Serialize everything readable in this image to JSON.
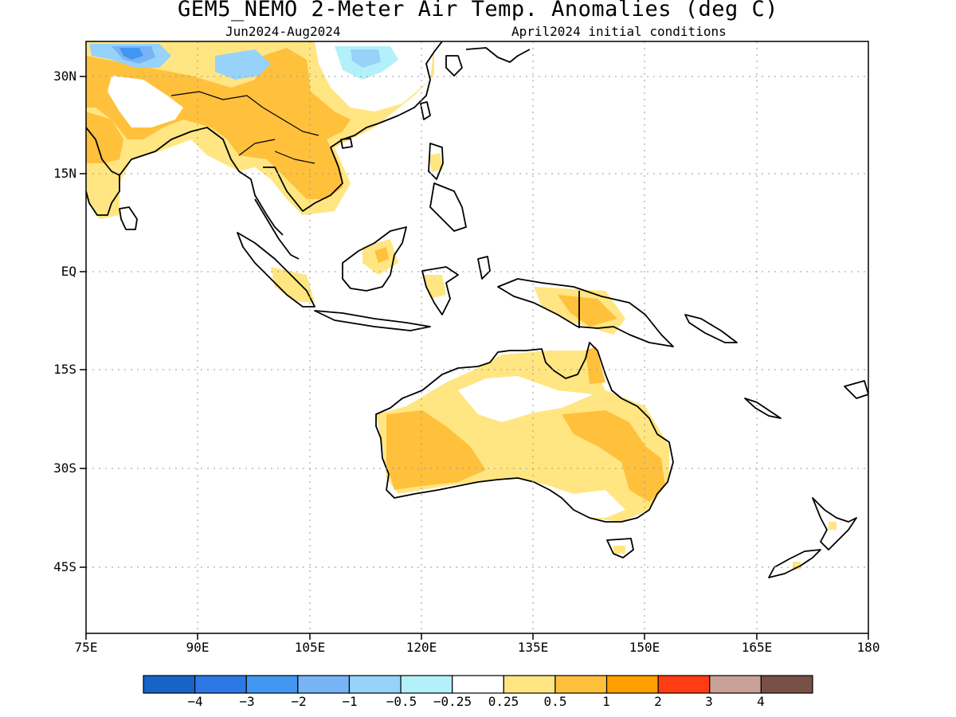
{
  "title": "GEM5_NEMO 2-Meter Air Temp. Anomalies (deg C)",
  "subtitle_left": "Jun2024-Aug2024",
  "subtitle_right": "April2024 initial conditions",
  "chart_data": {
    "type": "heatmap",
    "variable": "2-Meter Air Temp. Anomalies",
    "units": "deg C",
    "forecast_period": "Jun2024-Aug2024",
    "initial_conditions": "April2024 initial conditions",
    "lon_range": [
      75,
      180
    ],
    "lat_range": [
      -55,
      35
    ],
    "lat_ticks": [
      {
        "value": 30,
        "label": "30N"
      },
      {
        "value": 15,
        "label": "15N"
      },
      {
        "value": 0,
        "label": "EQ"
      },
      {
        "value": -15,
        "label": "15S"
      },
      {
        "value": -30,
        "label": "30S"
      },
      {
        "value": -45,
        "label": "45S"
      }
    ],
    "lon_ticks": [
      {
        "value": 75,
        "label": "75E"
      },
      {
        "value": 90,
        "label": "90E"
      },
      {
        "value": 105,
        "label": "105E"
      },
      {
        "value": 120,
        "label": "120E"
      },
      {
        "value": 135,
        "label": "135E"
      },
      {
        "value": 150,
        "label": "150E"
      },
      {
        "value": 165,
        "label": "165E"
      },
      {
        "value": 180,
        "label": "180"
      }
    ],
    "grid": "dotted",
    "colorbar": {
      "position": "bottom",
      "colors": [
        "#1764c8",
        "#2d78e6",
        "#4196f0",
        "#78b4f5",
        "#96d2fa",
        "#b4f0fa",
        "#ffffff",
        "#ffe682",
        "#ffc03c",
        "#ffa000",
        "#ff3c14",
        "#c8a096",
        "#785046"
      ],
      "labels": [
        "−4",
        "−3",
        "−2",
        "−1",
        "−0.5",
        "−0.25",
        "0.25",
        "0.5",
        "1",
        "2",
        "3",
        "4"
      ]
    }
  }
}
